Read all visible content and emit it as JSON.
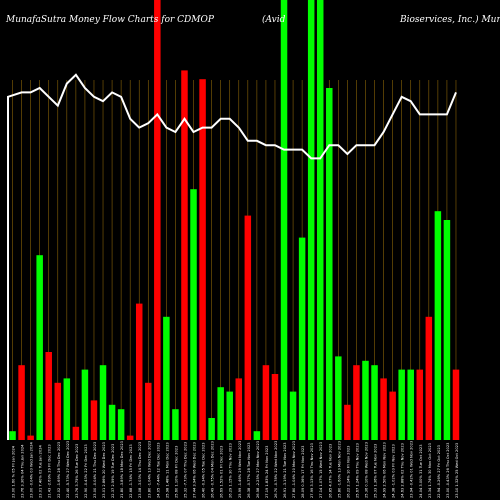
{
  "title": {
    "left": "MunafaSutra  Money Flow  Charts for CDMOP",
    "middle": "(Avid",
    "right": "Bioservices,  Inc.) MunafaSutra.com"
  },
  "colors": {
    "background": "#000000",
    "up": "#00ff00",
    "down": "#ff0000",
    "grid": "#b8860b",
    "line": "#ffffff",
    "label": "#ffffff"
  },
  "chart_data": {
    "type": "bar",
    "ylim": [
      0,
      100
    ],
    "grid": "vertical",
    "categories": [
      "23.00 1.60 % 05 Fri Jan 2024",
      "23.76 3.30% 04 Thu Jan 2024",
      "23.00 -0.04% 03 Wed Jan 2024",
      "23.01 7.40% 02 Tue Jan 2024",
      "21.43 -2.69% 29 Fri Dec 2023",
      "22.02 -1.69% 28 Thu Dec 2023",
      "22.40 -5.73% 27 Wed Dec 2023",
      "23.76 3.75% 26 Tue Dec 2023",
      "22.90 -0.43% 22 Fri Dec 2023",
      "23.00 -0.04% 21 Thu Dec 2023",
      "23.01 2.86% 20 Wed Dec 2023",
      "22.37 2.59% 19 Tue Dec 2023",
      "21.80 -3.89% 18 Mon Dec 2023",
      "22.68 -1.74% 15 Fri Dec 2023",
      "23.08 -3.03% 14 Thu Dec 2023",
      "23.80 -1.04% 13 Wed Dec 2023",
      "24.05 -7.44% 12 Tue Dec 2023",
      "25.98 1.48% 11 Mon Dec 2023",
      "25.60 1.10% 08 Fri Dec 2023",
      "25.32 -7.73% 07 Thu Dec 2023",
      "27.44 3.94% 06 Wed Dec 2023",
      "26.40 -0.34% 05 Tue Dec 2023",
      "26.49 -0.75% 04 Mon Dec 2023",
      "26.69 1.52% 01 Fri Dec 2023",
      "26.29 1.15% 30 Thu Nov 2023",
      "25.99 -1.46% 29 Wed Nov 2023",
      "26.38 -0.77% 28 Tue Nov 2023",
      "26.58 -2.25% 27 Mon Nov 2023",
      "27.19 1.83% 24 Fri Nov 2023",
      "26.70 -0.78% 22 Wed Nov 2023",
      "26.91 -3.19% 21 Tue Nov 2023",
      "27.80 -1.04% 20 Mon Nov 2023",
      "28.09 0.36% 17 Fri Nov 2023",
      "27.99 3.13% 16 Thu Nov 2023",
      "27.14 1.07% 15 Wed Nov 2023",
      "26.85 4.07% 14 Tue Nov 2023",
      "25.80 -1.60% 13 Mon Nov 2023",
      "26.22 2.14% 10 Fri Nov 2023",
      "25.67 1.24% 09 Thu Nov 2023",
      "25.36 0.10% 08 Wed Nov 2023",
      "25.33 1.36% 07 Tue Nov 2023",
      "24.99 2.50% 06 Mon Nov 2023",
      "24.38 -1.02% 03 Fri Nov 2023",
      "24.63 2.88% 02 Thu Nov 2023",
      "23.94 -0.42% 01 Wed Nov 2023",
      "24.04 3.00% 31 Tue Oct 2023",
      "23.34 1.74% 30 Mon Oct 2023",
      "22.94 -0.26% 27 Fri Oct 2023",
      "23.00 -0.43% 26 Thu Oct 2023",
      "23.10 1.32% 25 Wed Oct 2023"
    ],
    "series": [
      {
        "values": [
          2,
          17,
          1,
          42,
          20,
          13,
          14,
          3,
          16,
          9,
          17,
          8,
          7,
          1,
          31,
          13,
          100,
          28,
          7,
          84,
          57,
          82,
          5,
          12,
          11,
          14,
          51,
          2,
          17,
          15,
          100,
          11,
          46,
          100,
          100,
          80,
          19,
          8,
          17,
          18,
          17,
          14,
          11,
          16,
          16,
          16,
          28,
          52,
          50,
          16
        ],
        "colors": [
          "g",
          "r",
          "r",
          "g",
          "r",
          "r",
          "g",
          "r",
          "g",
          "r",
          "g",
          "g",
          "g",
          "r",
          "r",
          "r",
          "r",
          "g",
          "g",
          "r",
          "g",
          "r",
          "g",
          "g",
          "g",
          "r",
          "r",
          "g",
          "r",
          "r",
          "g",
          "g",
          "g",
          "g",
          "g",
          "g",
          "g",
          "r",
          "r",
          "g",
          "g",
          "r",
          "r",
          "g",
          "g",
          "r",
          "r",
          "g",
          "g",
          "r"
        ]
      }
    ],
    "line": [
      78,
      79,
      79,
      80,
      78,
      76,
      81,
      83,
      80,
      78,
      77,
      79,
      78,
      73,
      71,
      72,
      74,
      71,
      70,
      73,
      70,
      71,
      71,
      73,
      73,
      71,
      68,
      68,
      67,
      67,
      66,
      66,
      66,
      64,
      64,
      67,
      67,
      65,
      67,
      67,
      67,
      70,
      74,
      78,
      77,
      74,
      74,
      74,
      74,
      79
    ]
  }
}
